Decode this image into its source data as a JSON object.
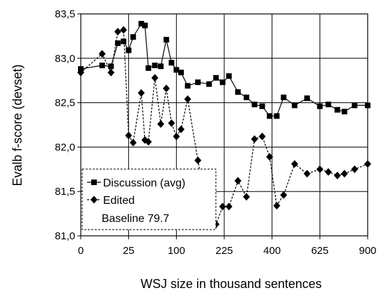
{
  "chart_data": {
    "type": "line",
    "xlabel": "WSJ size in thousand sentences",
    "ylabel": "Evalb f-score (devset)",
    "x_tick_labels": [
      "0",
      "25",
      "100",
      "225",
      "400",
      "625",
      "900"
    ],
    "x_tick_values": [
      0,
      25,
      100,
      225,
      400,
      625,
      900
    ],
    "x_scale": "sqrt",
    "ylim": [
      81.0,
      83.5
    ],
    "y_ticks": [
      81.0,
      81.5,
      82.0,
      82.5,
      83.0,
      83.5
    ],
    "y_tick_labels": [
      "81,0",
      "81,5",
      "82,0",
      "82,5",
      "83,0",
      "83,5"
    ],
    "grid": true,
    "legend_position": "bottom-left",
    "series": [
      {
        "name": "Discussion (avg)",
        "marker": "square",
        "line_style": "solid",
        "x": [
          0,
          5,
          10,
          15,
          20,
          25,
          30,
          40,
          45,
          50,
          60,
          70,
          80,
          90,
          100,
          110,
          125,
          150,
          180,
          200,
          220,
          240,
          270,
          300,
          330,
          360,
          390,
          420,
          450,
          500,
          560,
          625,
          670,
          720,
          760,
          820,
          900
        ],
        "values": [
          82.88,
          82.92,
          82.91,
          83.17,
          83.19,
          83.09,
          83.24,
          83.39,
          83.37,
          82.89,
          82.92,
          82.91,
          83.21,
          82.95,
          82.87,
          82.84,
          82.69,
          82.73,
          82.71,
          82.78,
          82.73,
          82.8,
          82.62,
          82.56,
          82.48,
          82.46,
          82.35,
          82.35,
          82.56,
          82.47,
          82.55,
          82.46,
          82.48,
          82.42,
          82.4,
          82.47,
          82.47
        ]
      },
      {
        "name": "Edited",
        "marker": "diamond",
        "line_style": "dashed",
        "x": [
          0,
          5,
          10,
          15,
          20,
          25,
          30,
          40,
          45,
          50,
          60,
          70,
          80,
          90,
          100,
          110,
          125,
          150,
          180,
          200,
          220,
          240,
          270,
          300,
          330,
          360,
          390,
          420,
          450,
          500,
          560,
          625,
          670,
          720,
          760,
          820,
          900
        ],
        "values": [
          82.84,
          83.05,
          82.84,
          83.3,
          83.32,
          82.13,
          82.05,
          82.61,
          82.08,
          82.06,
          82.78,
          82.26,
          82.66,
          82.27,
          82.12,
          82.2,
          82.54,
          81.85,
          81.15,
          81.13,
          81.33,
          81.33,
          81.62,
          81.44,
          82.09,
          82.12,
          81.89,
          81.34,
          81.46,
          81.81,
          81.7,
          81.75,
          81.72,
          81.68,
          81.7,
          81.75,
          81.81
        ]
      }
    ],
    "baseline_label": "Baseline 79.7"
  }
}
